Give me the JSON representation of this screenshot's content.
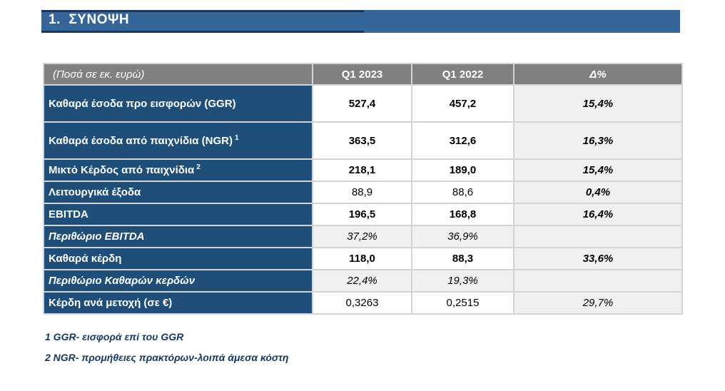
{
  "page": {
    "title": "1.  ΣΥΝΟΨΗ"
  },
  "colors": {
    "title_band": "#36659A",
    "title_rule": "#17375E",
    "header_gray": "#808080",
    "label_navy": "#1F4E79",
    "shaded_cell": "#F0F0F0",
    "cell_border": "#D4D4D4",
    "text_white": "#FFFFFF",
    "footnote_navy": "#17365D"
  },
  "table": {
    "header": {
      "label": "(Ποσά σε εκ. ευρώ)",
      "col_q1_2023": "Q1 2023",
      "col_q1_2022": "Q1 2022",
      "col_delta": "Δ%"
    },
    "rows": [
      {
        "label": "Καθαρά έσοδα προ εισφορών (GGR)",
        "sup": "",
        "q1_2023": "527,4",
        "q1_2022": "457,2",
        "delta": "15,4%",
        "style": "strong",
        "tall": true
      },
      {
        "label": "Καθαρά έσοδα από παιχνίδια (NGR)",
        "sup": "1",
        "q1_2023": "363,5",
        "q1_2022": "312,6",
        "delta": "16,3%",
        "style": "strong",
        "tall": true
      },
      {
        "label": "Μικτό Κέρδος από παιχνίδια",
        "sup": "2",
        "q1_2023": "218,1",
        "q1_2022": "189,0",
        "delta": "15,4%",
        "style": "strong",
        "tall": false
      },
      {
        "label": "Λειτουργικά έξοδα",
        "sup": "",
        "q1_2023": "88,9",
        "q1_2022": "88,6",
        "delta": "0,4%",
        "style": "normal",
        "tall": false
      },
      {
        "label": "EBITDA",
        "sup": "",
        "q1_2023": "196,5",
        "q1_2022": "168,8",
        "delta": "16,4%",
        "style": "strong",
        "tall": false
      },
      {
        "label": "Περιθώριο EBITDA",
        "sup": "",
        "q1_2023": "37,2%",
        "q1_2022": "36,9%",
        "delta": "",
        "style": "margin",
        "tall": false
      },
      {
        "label": "Καθαρά κέρδη",
        "sup": "",
        "q1_2023": "118,0",
        "q1_2022": "88,3",
        "delta": "33,6%",
        "style": "strong",
        "tall": false
      },
      {
        "label": "Περιθώριο Καθαρών κερδών",
        "sup": "",
        "q1_2023": "22,4%",
        "q1_2022": "19,3%",
        "delta": "",
        "style": "margin",
        "tall": false
      },
      {
        "label": "Κέρδη ανά μετοχή (σε €)",
        "sup": "",
        "q1_2023": "0,3263",
        "q1_2022": "0,2515",
        "delta": "29,7%",
        "style": "plain",
        "tall": false
      }
    ]
  },
  "footnotes": [
    "1 GGR- εισφορά επί του GGR",
    "2 NGR- προμήθειες πρακτόρων-λοιπά άμεσα κόστη"
  ]
}
